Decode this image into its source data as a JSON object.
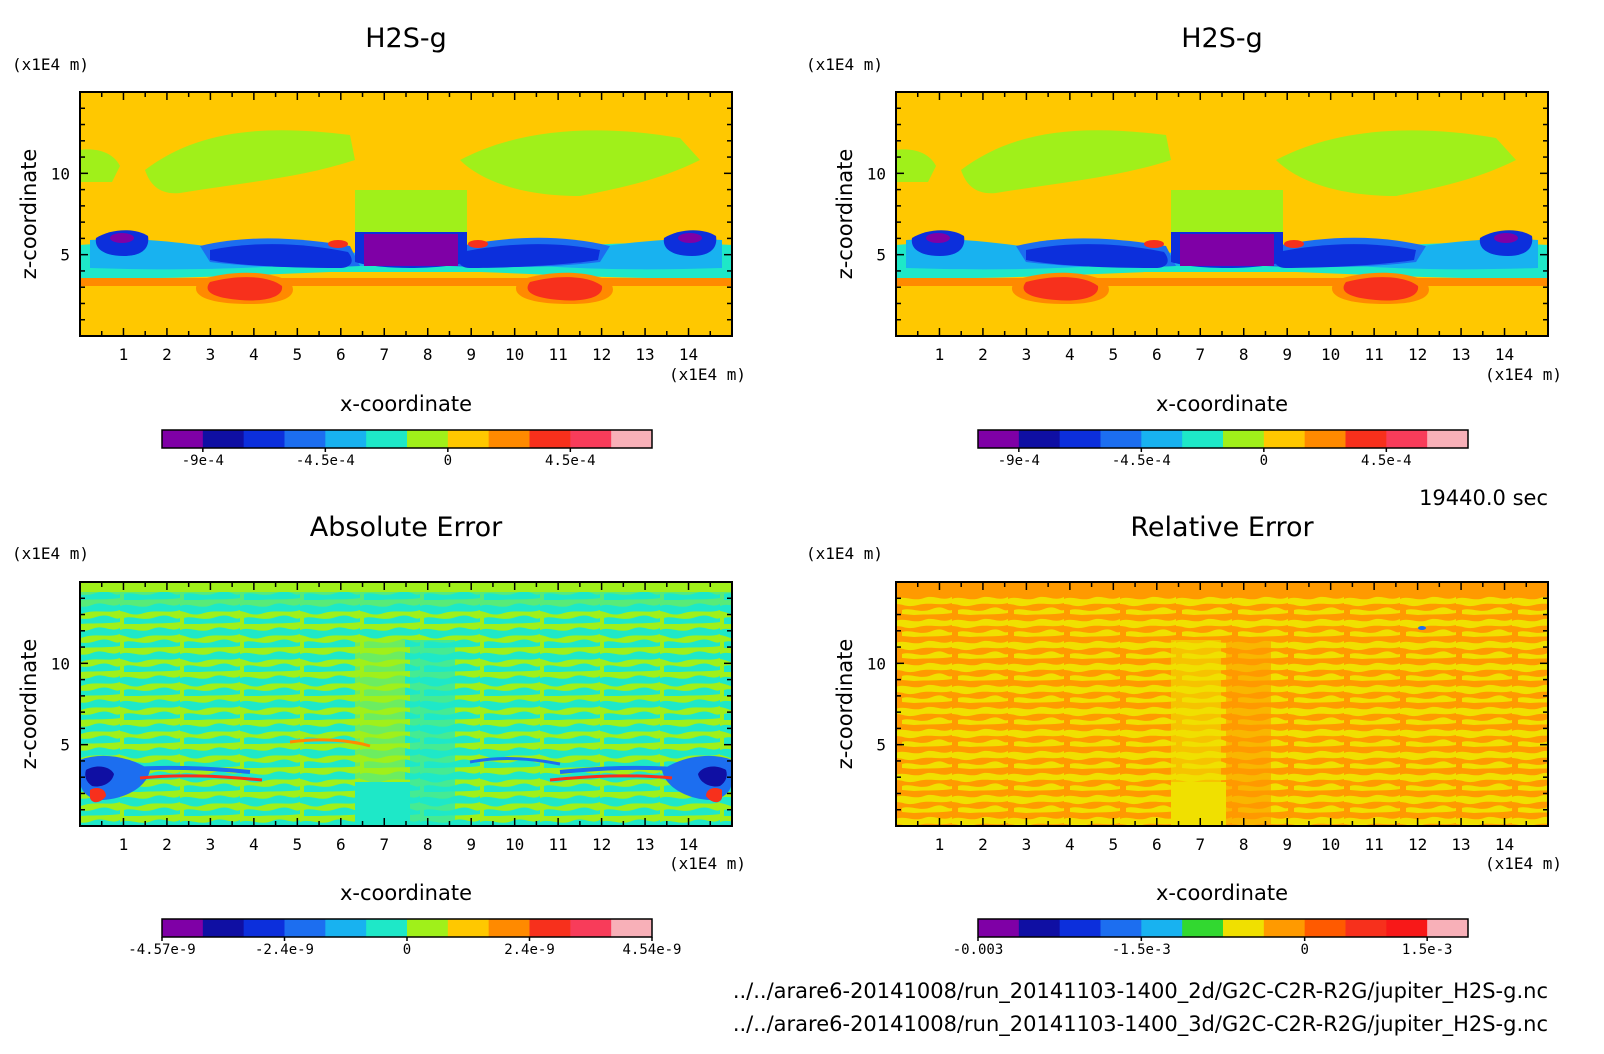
{
  "figure": {
    "time_label": "19440.0 sec",
    "file_paths": [
      "../../arare6-20141008/run_20141103-1400_2d/G2C-C2R-R2G/jupiter_H2S-g.nc",
      "../../arare6-20141008/run_20141103-1400_3d/G2C-C2R-R2G/jupiter_H2S-g.nc"
    ]
  },
  "chart_data": [
    {
      "type": "heatmap",
      "title": "H2S-g",
      "xlabel": "x-coordinate",
      "ylabel": "z-coordinate",
      "x_unit": "(x1E4 m)",
      "y_unit": "(x1E4 m)",
      "xlim": [
        0,
        15
      ],
      "ylim": [
        0,
        15
      ],
      "x_ticks": [
        1,
        2,
        3,
        4,
        5,
        6,
        7,
        8,
        9,
        10,
        11,
        12,
        13,
        14
      ],
      "y_ticks": [
        5,
        10
      ],
      "colorbar": {
        "colors": [
          "#7f00a6",
          "#0f0fa3",
          "#0c2fdc",
          "#1c6ef0",
          "#18b2f0",
          "#1ee8c8",
          "#a0f01a",
          "#ffc800",
          "#ff8a00",
          "#f7301c",
          "#f83c5a",
          "#f8b0b8"
        ],
        "labels": [
          "-9e-4",
          "-4.5e-4",
          "0",
          "4.5e-4"
        ],
        "label_boundaries": [
          1,
          4,
          7,
          10
        ]
      }
    },
    {
      "type": "heatmap",
      "title": "H2S-g",
      "xlabel": "x-coordinate",
      "ylabel": "z-coordinate",
      "x_unit": "(x1E4 m)",
      "y_unit": "(x1E4 m)",
      "xlim": [
        0,
        15
      ],
      "ylim": [
        0,
        15
      ],
      "x_ticks": [
        1,
        2,
        3,
        4,
        5,
        6,
        7,
        8,
        9,
        10,
        11,
        12,
        13,
        14
      ],
      "y_ticks": [
        5,
        10
      ],
      "colorbar": {
        "colors": [
          "#7f00a6",
          "#0f0fa3",
          "#0c2fdc",
          "#1c6ef0",
          "#18b2f0",
          "#1ee8c8",
          "#a0f01a",
          "#ffc800",
          "#ff8a00",
          "#f7301c",
          "#f83c5a",
          "#f8b0b8"
        ],
        "labels": [
          "-9e-4",
          "-4.5e-4",
          "0",
          "4.5e-4"
        ],
        "label_boundaries": [
          1,
          4,
          7,
          10
        ]
      }
    },
    {
      "type": "heatmap",
      "title": "Absolute Error",
      "xlabel": "x-coordinate",
      "ylabel": "z-coordinate",
      "x_unit": "(x1E4 m)",
      "y_unit": "(x1E4 m)",
      "xlim": [
        0,
        15
      ],
      "ylim": [
        0,
        15
      ],
      "x_ticks": [
        1,
        2,
        3,
        4,
        5,
        6,
        7,
        8,
        9,
        10,
        11,
        12,
        13,
        14
      ],
      "y_ticks": [
        5,
        10
      ],
      "colorbar": {
        "colors": [
          "#7f00a6",
          "#0f0fa3",
          "#0c2fdc",
          "#1c6ef0",
          "#18b2f0",
          "#1ee8c8",
          "#a0f01a",
          "#ffc800",
          "#ff8a00",
          "#f7301c",
          "#f83c5a",
          "#f8b0b8"
        ],
        "labels": [
          "-4.57e-9",
          "-2.4e-9",
          "0",
          "2.4e-9",
          "4.54e-9"
        ],
        "label_boundaries": [
          0,
          3,
          6,
          9,
          12
        ]
      }
    },
    {
      "type": "heatmap",
      "title": "Relative Error",
      "xlabel": "x-coordinate",
      "ylabel": "z-coordinate",
      "x_unit": "(x1E4 m)",
      "y_unit": "(x1E4 m)",
      "xlim": [
        0,
        15
      ],
      "ylim": [
        0,
        15
      ],
      "x_ticks": [
        1,
        2,
        3,
        4,
        5,
        6,
        7,
        8,
        9,
        10,
        11,
        12,
        13,
        14
      ],
      "y_ticks": [
        5,
        10
      ],
      "colorbar": {
        "colors": [
          "#7f00a6",
          "#0f0fa3",
          "#0c2fdc",
          "#1c6ef0",
          "#18b2f0",
          "#32d830",
          "#f0e000",
          "#ff9a00",
          "#ff5a00",
          "#f7301c",
          "#f81818",
          "#f8b0b8"
        ],
        "labels": [
          "-0.003",
          "-1.5e-3",
          "0",
          "1.5e-3"
        ],
        "label_boundaries": [
          0,
          4,
          8,
          11
        ]
      }
    }
  ]
}
